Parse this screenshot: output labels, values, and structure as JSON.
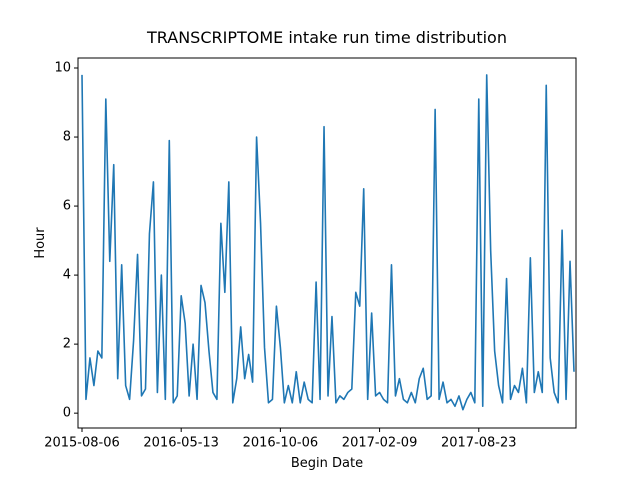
{
  "chart_data": {
    "type": "line",
    "title": "TRANSCRIPTOME intake run time distribution",
    "x_label": "Begin Date",
    "y_label": "Hour",
    "categories": [
      "2015-08-06",
      null,
      null,
      null,
      null,
      null,
      null,
      null,
      null,
      null,
      null,
      null,
      null,
      null,
      null,
      null,
      null,
      null,
      null,
      null,
      null,
      null,
      null,
      null,
      null,
      "2016-05-13",
      null,
      null,
      null,
      null,
      null,
      null,
      null,
      null,
      null,
      null,
      null,
      null,
      null,
      null,
      null,
      null,
      null,
      null,
      null,
      null,
      null,
      null,
      null,
      null,
      "2016-10-06",
      null,
      null,
      null,
      null,
      null,
      null,
      null,
      null,
      null,
      null,
      null,
      null,
      null,
      null,
      null,
      null,
      null,
      null,
      null,
      null,
      null,
      null,
      null,
      null,
      "2017-02-09",
      null,
      null,
      null,
      null,
      null,
      null,
      null,
      null,
      null,
      null,
      null,
      null,
      null,
      null,
      null,
      null,
      null,
      null,
      null,
      null,
      null,
      null,
      null,
      null,
      "2017-08-23",
      null,
      null,
      null,
      null,
      null,
      null,
      null,
      null,
      null,
      null,
      null,
      null,
      null,
      null,
      null,
      null,
      null,
      null,
      null,
      null,
      null,
      null,
      null,
      null
    ],
    "values": [
      9.8,
      0.4,
      1.6,
      0.8,
      1.8,
      1.6,
      9.1,
      4.4,
      7.2,
      1.0,
      4.3,
      0.8,
      0.4,
      2.1,
      4.6,
      0.5,
      0.7,
      5.2,
      6.7,
      0.6,
      4.0,
      0.4,
      7.9,
      0.3,
      0.5,
      3.4,
      2.6,
      0.5,
      2.0,
      0.4,
      3.7,
      3.2,
      1.8,
      0.6,
      0.4,
      5.5,
      3.5,
      6.7,
      0.3,
      1.0,
      2.5,
      1.0,
      1.7,
      0.9,
      8.0,
      5.5,
      1.9,
      0.3,
      0.4,
      3.1,
      1.9,
      0.3,
      0.8,
      0.3,
      1.2,
      0.3,
      0.9,
      0.4,
      0.3,
      3.8,
      0.4,
      8.3,
      0.5,
      2.8,
      0.3,
      0.5,
      0.4,
      0.6,
      0.7,
      3.5,
      3.1,
      6.5,
      0.4,
      2.9,
      0.5,
      0.6,
      0.4,
      0.3,
      4.3,
      0.5,
      1.0,
      0.4,
      0.3,
      0.6,
      0.3,
      1.0,
      1.3,
      0.4,
      0.5,
      8.8,
      0.4,
      0.9,
      0.3,
      0.4,
      0.2,
      0.5,
      0.1,
      0.4,
      0.6,
      0.3,
      9.1,
      0.2,
      9.8,
      4.7,
      1.8,
      0.8,
      0.3,
      3.9,
      0.4,
      0.8,
      0.6,
      1.3,
      0.3,
      4.5,
      0.6,
      1.2,
      0.6,
      9.5,
      1.6,
      0.6,
      0.3,
      5.3,
      0.4,
      4.4,
      1.2
    ],
    "color": "#1f77b4",
    "ylim": [
      -0.43,
      10.29
    ],
    "yticks": [
      0,
      2,
      4,
      6,
      8,
      10
    ]
  }
}
